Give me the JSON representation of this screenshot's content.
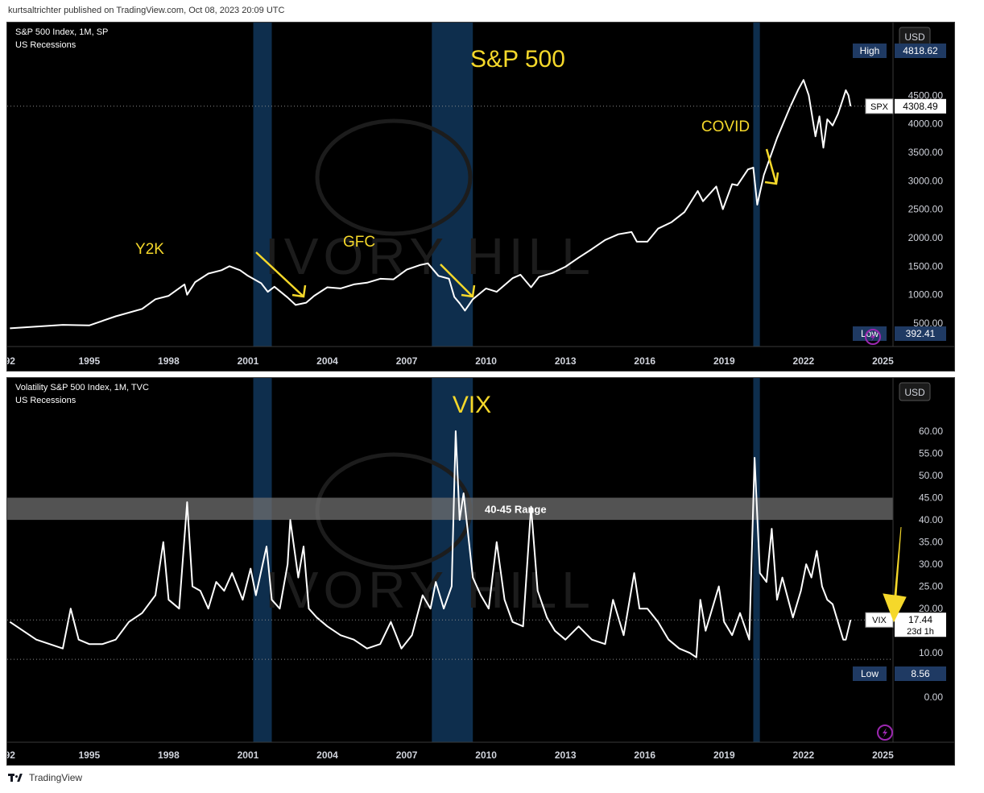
{
  "header": {
    "published": "kurtsaltrichter published on TradingView.com, Oct 08, 2023 20:09 UTC"
  },
  "footer": {
    "brand": "TradingView"
  },
  "watermark": {
    "text": "IVORY HILL"
  },
  "colors": {
    "background": "#000000",
    "line": "#ffffff",
    "recession": "#0e2e4d",
    "annotation": "#f5d82a",
    "label_box": "#1f3a63"
  },
  "chart_data": [
    {
      "type": "line",
      "legend": [
        "S&P 500 Index, 1M, SP",
        "US Recessions"
      ],
      "currency": "USD",
      "title": "S&P 500",
      "x_ticks": [
        "92",
        "1995",
        "1998",
        "2001",
        "2004",
        "2007",
        "2010",
        "2013",
        "2016",
        "2019",
        "2022",
        "2025"
      ],
      "y_ticks": [
        "500.00",
        "1000.00",
        "1500.00",
        "2000.00",
        "2500.00",
        "3000.00",
        "3500.00",
        "4000.00",
        "4500.00"
      ],
      "ylim": [
        500,
        4900
      ],
      "xlim": [
        1991.9,
        2025.2
      ],
      "high": {
        "label": "High",
        "value": "4818.62"
      },
      "low": {
        "label": "Low",
        "value": "392.41"
      },
      "last": {
        "symbol": "SPX",
        "value": "4308.49"
      },
      "recessions": [
        [
          2001.2,
          2001.9
        ],
        [
          2007.95,
          2009.5
        ],
        [
          2020.1,
          2020.35
        ]
      ],
      "annotations": [
        "Y2K",
        "GFC",
        "COVID"
      ],
      "series": [
        {
          "values": [
            [
              1992.0,
              410
            ],
            [
              1993.0,
              440
            ],
            [
              1994.0,
              470
            ],
            [
              1995.0,
              460
            ],
            [
              1996.0,
              620
            ],
            [
              1997.0,
              750
            ],
            [
              1997.5,
              920
            ],
            [
              1998.0,
              980
            ],
            [
              1998.6,
              1180
            ],
            [
              1998.7,
              1000
            ],
            [
              1999.0,
              1220
            ],
            [
              1999.5,
              1370
            ],
            [
              2000.0,
              1430
            ],
            [
              2000.3,
              1500
            ],
            [
              2000.7,
              1430
            ],
            [
              2001.0,
              1330
            ],
            [
              2001.5,
              1200
            ],
            [
              2001.75,
              1050
            ],
            [
              2002.0,
              1140
            ],
            [
              2002.5,
              950
            ],
            [
              2002.8,
              820
            ],
            [
              2003.2,
              860
            ],
            [
              2003.5,
              980
            ],
            [
              2004.0,
              1130
            ],
            [
              2004.5,
              1110
            ],
            [
              2005.0,
              1180
            ],
            [
              2005.5,
              1210
            ],
            [
              2006.0,
              1280
            ],
            [
              2006.5,
              1270
            ],
            [
              2007.0,
              1440
            ],
            [
              2007.5,
              1520
            ],
            [
              2007.8,
              1550
            ],
            [
              2008.2,
              1330
            ],
            [
              2008.6,
              1280
            ],
            [
              2008.8,
              960
            ],
            [
              2009.0,
              850
            ],
            [
              2009.2,
              720
            ],
            [
              2009.5,
              920
            ],
            [
              2010.0,
              1110
            ],
            [
              2010.4,
              1050
            ],
            [
              2011.0,
              1290
            ],
            [
              2011.3,
              1350
            ],
            [
              2011.7,
              1130
            ],
            [
              2012.0,
              1310
            ],
            [
              2012.5,
              1380
            ],
            [
              2013.0,
              1490
            ],
            [
              2013.5,
              1650
            ],
            [
              2014.0,
              1800
            ],
            [
              2014.5,
              1960
            ],
            [
              2015.0,
              2060
            ],
            [
              2015.5,
              2100
            ],
            [
              2015.7,
              1930
            ],
            [
              2016.1,
              1930
            ],
            [
              2016.5,
              2160
            ],
            [
              2017.0,
              2270
            ],
            [
              2017.5,
              2450
            ],
            [
              2018.0,
              2820
            ],
            [
              2018.2,
              2640
            ],
            [
              2018.7,
              2900
            ],
            [
              2018.95,
              2500
            ],
            [
              2019.3,
              2940
            ],
            [
              2019.5,
              2920
            ],
            [
              2019.9,
              3200
            ],
            [
              2020.1,
              3230
            ],
            [
              2020.25,
              2580
            ],
            [
              2020.5,
              3100
            ],
            [
              2020.7,
              3360
            ],
            [
              2021.0,
              3750
            ],
            [
              2021.5,
              4300
            ],
            [
              2021.8,
              4600
            ],
            [
              2022.0,
              4770
            ],
            [
              2022.2,
              4500
            ],
            [
              2022.45,
              3780
            ],
            [
              2022.6,
              4130
            ],
            [
              2022.75,
              3580
            ],
            [
              2022.9,
              4080
            ],
            [
              2023.1,
              3970
            ],
            [
              2023.3,
              4170
            ],
            [
              2023.5,
              4450
            ],
            [
              2023.6,
              4590
            ],
            [
              2023.7,
              4500
            ],
            [
              2023.78,
              4308
            ]
          ]
        }
      ]
    },
    {
      "type": "line",
      "legend": [
        "Volatility S&P 500 Index, 1M, TVC",
        "US Recessions"
      ],
      "currency": "USD",
      "title": "VIX",
      "x_ticks": [
        "92",
        "1995",
        "1998",
        "2001",
        "2004",
        "2007",
        "2010",
        "2013",
        "2016",
        "2019",
        "2022",
        "2025"
      ],
      "y_ticks": [
        "0.00",
        "5.00",
        "10.00",
        "15.00",
        "20.00",
        "25.00",
        "30.00",
        "35.00",
        "40.00",
        "45.00",
        "50.00",
        "55.00",
        "60.00"
      ],
      "ylim": [
        -4.5,
        64
      ],
      "xlim": [
        1991.9,
        2025.2
      ],
      "band": {
        "label": "40-45 Range",
        "from": 40,
        "to": 45
      },
      "low": {
        "label": "Low",
        "value": "8.56"
      },
      "last": {
        "symbol": "VIX",
        "value": "17.44",
        "countdown": "23d 1h"
      },
      "recessions": [
        [
          2001.2,
          2001.9
        ],
        [
          2007.95,
          2009.5
        ],
        [
          2020.1,
          2020.35
        ]
      ],
      "series": [
        {
          "values": [
            [
              1992.0,
              17
            ],
            [
              1992.5,
              15
            ],
            [
              1993.0,
              13
            ],
            [
              1993.5,
              12
            ],
            [
              1994.0,
              11
            ],
            [
              1994.3,
              20
            ],
            [
              1994.6,
              13
            ],
            [
              1995.0,
              12
            ],
            [
              1995.5,
              12
            ],
            [
              1996.0,
              13
            ],
            [
              1996.5,
              17
            ],
            [
              1997.0,
              19
            ],
            [
              1997.5,
              23
            ],
            [
              1997.8,
              35
            ],
            [
              1998.0,
              22
            ],
            [
              1998.4,
              20
            ],
            [
              1998.7,
              44
            ],
            [
              1998.9,
              25
            ],
            [
              1999.2,
              24
            ],
            [
              1999.5,
              20
            ],
            [
              1999.8,
              26
            ],
            [
              2000.1,
              24
            ],
            [
              2000.4,
              28
            ],
            [
              2000.8,
              22
            ],
            [
              2001.1,
              29
            ],
            [
              2001.3,
              23
            ],
            [
              2001.7,
              34
            ],
            [
              2001.9,
              22
            ],
            [
              2002.2,
              20
            ],
            [
              2002.5,
              30
            ],
            [
              2002.6,
              40
            ],
            [
              2002.9,
              27
            ],
            [
              2003.1,
              34
            ],
            [
              2003.3,
              20
            ],
            [
              2003.6,
              18
            ],
            [
              2004.0,
              16
            ],
            [
              2004.5,
              14
            ],
            [
              2005.0,
              13
            ],
            [
              2005.5,
              11
            ],
            [
              2006.0,
              12
            ],
            [
              2006.4,
              17
            ],
            [
              2006.8,
              11
            ],
            [
              2007.2,
              14
            ],
            [
              2007.6,
              23
            ],
            [
              2007.9,
              20
            ],
            [
              2008.1,
              26
            ],
            [
              2008.4,
              20
            ],
            [
              2008.7,
              25
            ],
            [
              2008.85,
              60
            ],
            [
              2009.0,
              40
            ],
            [
              2009.15,
              46
            ],
            [
              2009.3,
              38
            ],
            [
              2009.5,
              27
            ],
            [
              2009.8,
              23
            ],
            [
              2010.1,
              20
            ],
            [
              2010.4,
              35
            ],
            [
              2010.7,
              22
            ],
            [
              2011.0,
              17
            ],
            [
              2011.4,
              16
            ],
            [
              2011.7,
              43
            ],
            [
              2011.95,
              24
            ],
            [
              2012.3,
              18
            ],
            [
              2012.6,
              15
            ],
            [
              2013.0,
              13
            ],
            [
              2013.5,
              16
            ],
            [
              2014.0,
              13
            ],
            [
              2014.5,
              12
            ],
            [
              2014.8,
              22
            ],
            [
              2015.2,
              14
            ],
            [
              2015.6,
              28
            ],
            [
              2015.8,
              20
            ],
            [
              2016.1,
              20
            ],
            [
              2016.5,
              17
            ],
            [
              2016.9,
              13
            ],
            [
              2017.3,
              11
            ],
            [
              2017.7,
              10
            ],
            [
              2017.95,
              9
            ],
            [
              2018.1,
              22
            ],
            [
              2018.3,
              15
            ],
            [
              2018.8,
              25
            ],
            [
              2019.0,
              17
            ],
            [
              2019.3,
              14
            ],
            [
              2019.6,
              19
            ],
            [
              2019.95,
              13
            ],
            [
              2020.15,
              54
            ],
            [
              2020.35,
              28
            ],
            [
              2020.6,
              26
            ],
            [
              2020.8,
              38
            ],
            [
              2021.0,
              22
            ],
            [
              2021.2,
              27
            ],
            [
              2021.6,
              18
            ],
            [
              2021.9,
              24
            ],
            [
              2022.1,
              30
            ],
            [
              2022.3,
              27
            ],
            [
              2022.5,
              33
            ],
            [
              2022.7,
              25
            ],
            [
              2022.9,
              22
            ],
            [
              2023.1,
              21
            ],
            [
              2023.3,
              17
            ],
            [
              2023.5,
              13
            ],
            [
              2023.6,
              13
            ],
            [
              2023.78,
              17.44
            ]
          ]
        }
      ]
    }
  ]
}
